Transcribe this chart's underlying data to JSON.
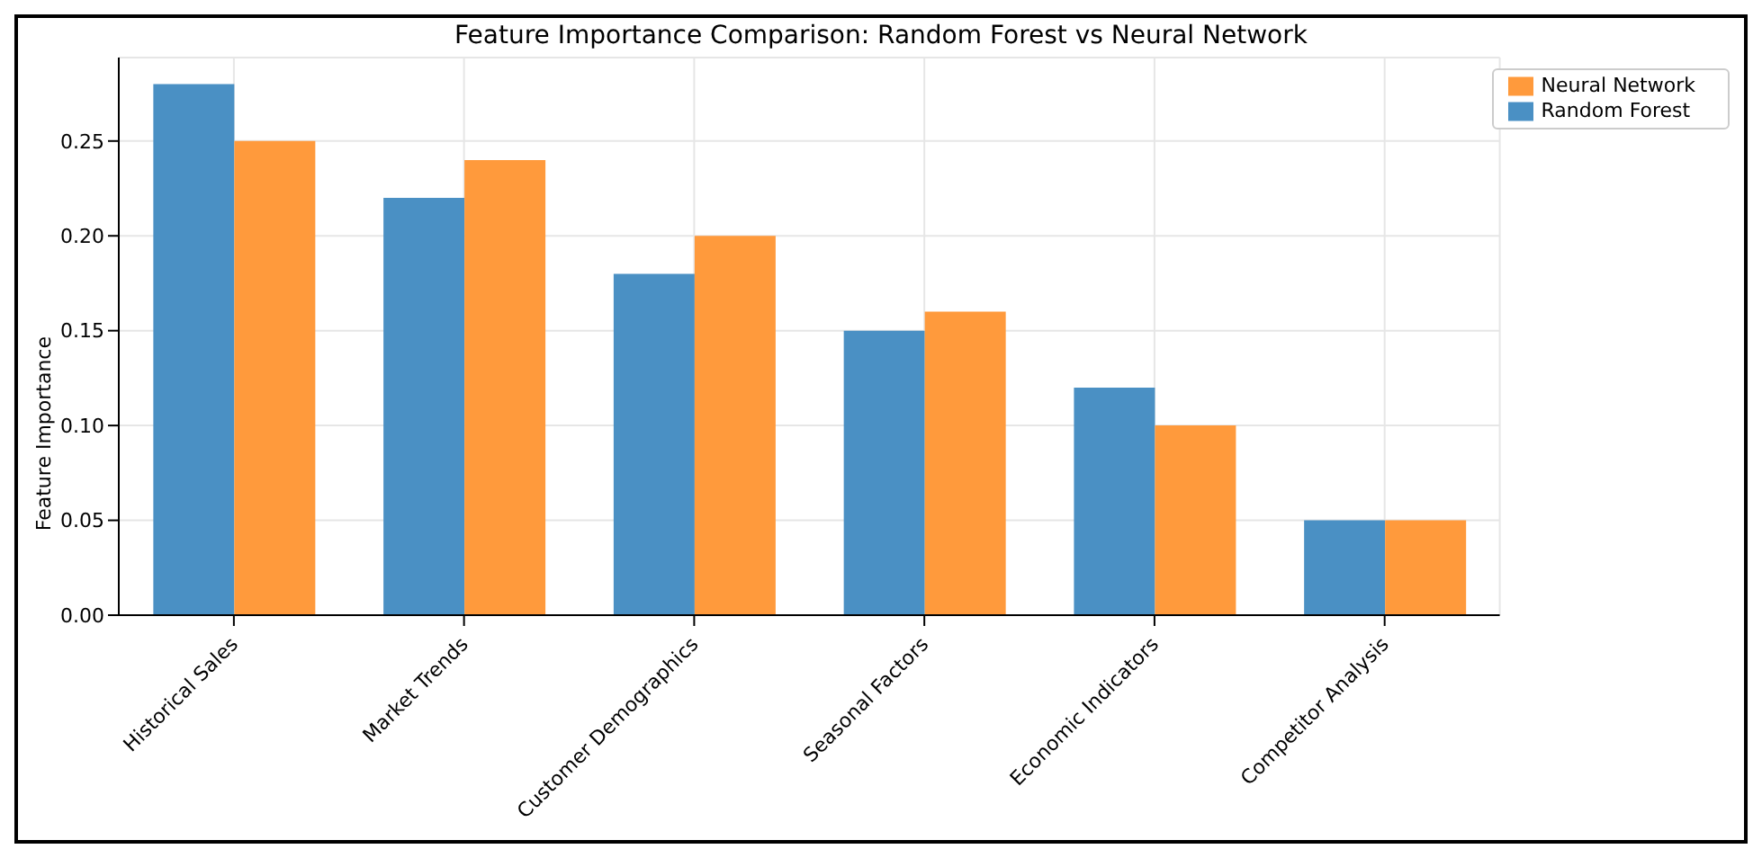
{
  "chart_data": {
    "type": "bar",
    "title": "Feature Importance Comparison: Random Forest vs Neural Network",
    "ylabel": "Feature Importance",
    "categories": [
      "Historical Sales",
      "Market Trends",
      "Customer Demographics",
      "Seasonal Factors",
      "Economic Indicators",
      "Competitor Analysis"
    ],
    "series": [
      {
        "name": "Random Forest",
        "color": "#4a90c4",
        "values": [
          0.28,
          0.22,
          0.18,
          0.15,
          0.12,
          0.05
        ]
      },
      {
        "name": "Neural Network",
        "color": "#ff9a3c",
        "values": [
          0.25,
          0.24,
          0.2,
          0.16,
          0.1,
          0.05
        ]
      }
    ],
    "ylim": [
      0,
      0.294
    ],
    "yticks": [
      {
        "value": 0,
        "label": "0.00"
      },
      0.05,
      {
        "value": 0.1,
        "label": "0.10"
      },
      0.15,
      {
        "value": 0.2,
        "label": "0.20"
      },
      0.25
    ],
    "grid": true,
    "legend": "top right"
  }
}
